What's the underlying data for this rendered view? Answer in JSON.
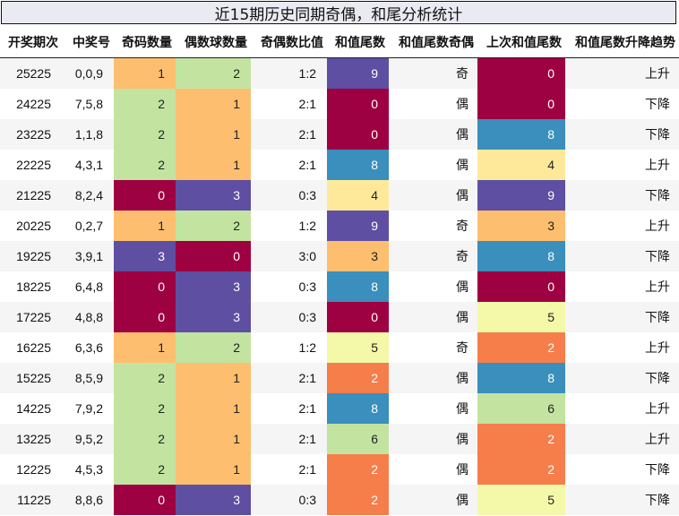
{
  "title": "近15期历史同期奇偶，和尾分析统计",
  "columns": [
    "开奖期次",
    "中奖号",
    "奇码数量",
    "偶数球数量",
    "奇偶数比值",
    "和值尾数",
    "和值尾数奇偶",
    "上次和值尾数",
    "和值尾数升降趋势"
  ],
  "colors": {
    "0": "#9e0142",
    "1": "#fdbf6f",
    "2": "#c2e4a0",
    "3": "#5e4fa2",
    "heat": {
      "0": "#9e0142",
      "2": "#f67e4b",
      "3": "#fdbf6f",
      "4": "#fee99a",
      "5": "#f3f9a8",
      "6": "#c2e4a0",
      "8": "#3a8fbc",
      "9": "#5e4fa2"
    }
  },
  "rows": [
    {
      "period": "25225",
      "numbers": "0,0,9",
      "odd": "1",
      "even": "2",
      "ratio": "1:2",
      "tail": "9",
      "tail_parity": "奇",
      "prev_tail": "0",
      "trend": "上升"
    },
    {
      "period": "24225",
      "numbers": "7,5,8",
      "odd": "2",
      "even": "1",
      "ratio": "2:1",
      "tail": "0",
      "tail_parity": "偶",
      "prev_tail": "0",
      "trend": "下降"
    },
    {
      "period": "23225",
      "numbers": "1,1,8",
      "odd": "2",
      "even": "1",
      "ratio": "2:1",
      "tail": "0",
      "tail_parity": "偶",
      "prev_tail": "8",
      "trend": "下降"
    },
    {
      "period": "22225",
      "numbers": "4,3,1",
      "odd": "2",
      "even": "1",
      "ratio": "2:1",
      "tail": "8",
      "tail_parity": "偶",
      "prev_tail": "4",
      "trend": "上升"
    },
    {
      "period": "21225",
      "numbers": "8,2,4",
      "odd": "0",
      "even": "3",
      "ratio": "0:3",
      "tail": "4",
      "tail_parity": "偶",
      "prev_tail": "9",
      "trend": "下降"
    },
    {
      "period": "20225",
      "numbers": "0,2,7",
      "odd": "1",
      "even": "2",
      "ratio": "1:2",
      "tail": "9",
      "tail_parity": "奇",
      "prev_tail": "3",
      "trend": "上升"
    },
    {
      "period": "19225",
      "numbers": "3,9,1",
      "odd": "3",
      "even": "0",
      "ratio": "3:0",
      "tail": "3",
      "tail_parity": "奇",
      "prev_tail": "8",
      "trend": "下降"
    },
    {
      "period": "18225",
      "numbers": "6,4,8",
      "odd": "0",
      "even": "3",
      "ratio": "0:3",
      "tail": "8",
      "tail_parity": "偶",
      "prev_tail": "0",
      "trend": "上升"
    },
    {
      "period": "17225",
      "numbers": "4,8,8",
      "odd": "0",
      "even": "3",
      "ratio": "0:3",
      "tail": "0",
      "tail_parity": "偶",
      "prev_tail": "5",
      "trend": "下降"
    },
    {
      "period": "16225",
      "numbers": "6,3,6",
      "odd": "1",
      "even": "2",
      "ratio": "1:2",
      "tail": "5",
      "tail_parity": "奇",
      "prev_tail": "2",
      "trend": "上升"
    },
    {
      "period": "15225",
      "numbers": "8,5,9",
      "odd": "2",
      "even": "1",
      "ratio": "2:1",
      "tail": "2",
      "tail_parity": "偶",
      "prev_tail": "8",
      "trend": "下降"
    },
    {
      "period": "14225",
      "numbers": "7,9,2",
      "odd": "2",
      "even": "1",
      "ratio": "2:1",
      "tail": "8",
      "tail_parity": "偶",
      "prev_tail": "6",
      "trend": "上升"
    },
    {
      "period": "13225",
      "numbers": "9,5,2",
      "odd": "2",
      "even": "1",
      "ratio": "2:1",
      "tail": "6",
      "tail_parity": "偶",
      "prev_tail": "2",
      "trend": "上升"
    },
    {
      "period": "12225",
      "numbers": "4,5,3",
      "odd": "2",
      "even": "1",
      "ratio": "2:1",
      "tail": "2",
      "tail_parity": "偶",
      "prev_tail": "2",
      "trend": "下降"
    },
    {
      "period": "11225",
      "numbers": "8,8,6",
      "odd": "0",
      "even": "3",
      "ratio": "0:3",
      "tail": "2",
      "tail_parity": "偶",
      "prev_tail": "5",
      "trend": "下降"
    }
  ]
}
